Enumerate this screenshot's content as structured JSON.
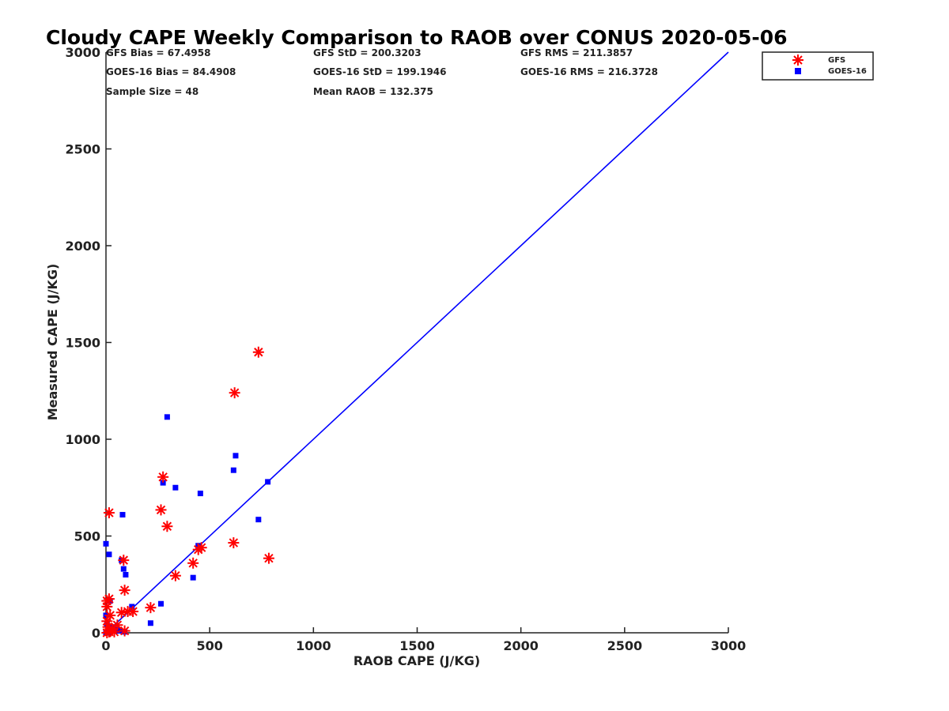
{
  "chart_data": {
    "type": "scatter",
    "title": "Cloudy CAPE Weekly Comparison to RAOB over CONUS 2020-05-06",
    "xlabel": "RAOB CAPE (J/KG)",
    "ylabel": "Measured CAPE (J/KG)",
    "xlim": [
      0,
      3000
    ],
    "ylim": [
      0,
      3000
    ],
    "xticks": [
      "0",
      "500",
      "1000",
      "1500",
      "2000",
      "2500",
      "3000"
    ],
    "yticks": [
      "0",
      "500",
      "1000",
      "1500",
      "2000",
      "2500",
      "3000"
    ],
    "tick_values": [
      0,
      500,
      1000,
      1500,
      2000,
      2500,
      3000
    ],
    "reference_line": {
      "x": [
        0,
        3000
      ],
      "y": [
        0,
        3000
      ],
      "color": "#0000ff"
    },
    "legend_position": "top-right",
    "stats": [
      "GFS Bias = 67.4958",
      "GFS StD = 200.3203",
      "GFS RMS = 211.3857",
      "GOES-16 Bias = 84.4908",
      "GOES-16 StD = 199.1946",
      "GOES-16 RMS = 216.3728",
      "Sample Size = 48",
      "Mean RAOB = 132.375"
    ],
    "series": [
      {
        "name": "GFS",
        "marker": "asterisk",
        "color": "#ff0000",
        "points": [
          [
            735,
            1450
          ],
          [
            620,
            1240
          ],
          [
            275,
            805
          ],
          [
            15,
            620
          ],
          [
            265,
            635
          ],
          [
            295,
            550
          ],
          [
            615,
            465
          ],
          [
            460,
            440
          ],
          [
            445,
            430
          ],
          [
            785,
            385
          ],
          [
            420,
            360
          ],
          [
            85,
            375
          ],
          [
            335,
            295
          ],
          [
            90,
            220
          ],
          [
            15,
            175
          ],
          [
            5,
            165
          ],
          [
            5,
            135
          ],
          [
            215,
            130
          ],
          [
            130,
            110
          ],
          [
            75,
            105
          ],
          [
            105,
            110
          ],
          [
            20,
            90
          ],
          [
            5,
            60
          ],
          [
            10,
            30
          ],
          [
            55,
            40
          ],
          [
            30,
            20
          ],
          [
            5,
            0
          ],
          [
            15,
            5
          ],
          [
            90,
            10
          ],
          [
            40,
            5
          ]
        ]
      },
      {
        "name": "GOES-16",
        "marker": "square",
        "color": "#0000ff",
        "points": [
          [
            295,
            1115
          ],
          [
            625,
            915
          ],
          [
            615,
            840
          ],
          [
            275,
            775
          ],
          [
            335,
            750
          ],
          [
            455,
            720
          ],
          [
            780,
            780
          ],
          [
            80,
            610
          ],
          [
            735,
            585
          ],
          [
            0,
            460
          ],
          [
            445,
            450
          ],
          [
            15,
            405
          ],
          [
            75,
            375
          ],
          [
            85,
            330
          ],
          [
            95,
            300
          ],
          [
            420,
            285
          ],
          [
            20,
            165
          ],
          [
            265,
            150
          ],
          [
            125,
            135
          ],
          [
            0,
            90
          ],
          [
            215,
            50
          ],
          [
            5,
            45
          ],
          [
            25,
            30
          ],
          [
            50,
            15
          ],
          [
            65,
            10
          ],
          [
            90,
            5
          ],
          [
            10,
            0
          ],
          [
            35,
            10
          ],
          [
            15,
            5
          ],
          [
            0,
            0
          ]
        ]
      }
    ]
  }
}
